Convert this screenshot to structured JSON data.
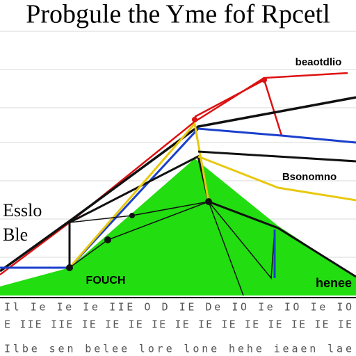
{
  "header": {
    "title": "Probgule the Yme fof Rpcetl"
  },
  "labels": {
    "top_right": "beaotdlio",
    "middle_right": "Bsonomno",
    "left_top": "Esslo",
    "left_bottom": "Ble",
    "center_bottom": "FOUCH",
    "right_bottom": "henee"
  },
  "footer": {
    "rows": [
      "Il Ie Ie Ie IIE O D IE De IO Ie IO Ie IO",
      "E IIE IIE IE IE IE IE IE IE IE IE IE IE IE IE",
      "Ilbe sen belee lore lone hehe ieaen lae"
    ]
  }
}
